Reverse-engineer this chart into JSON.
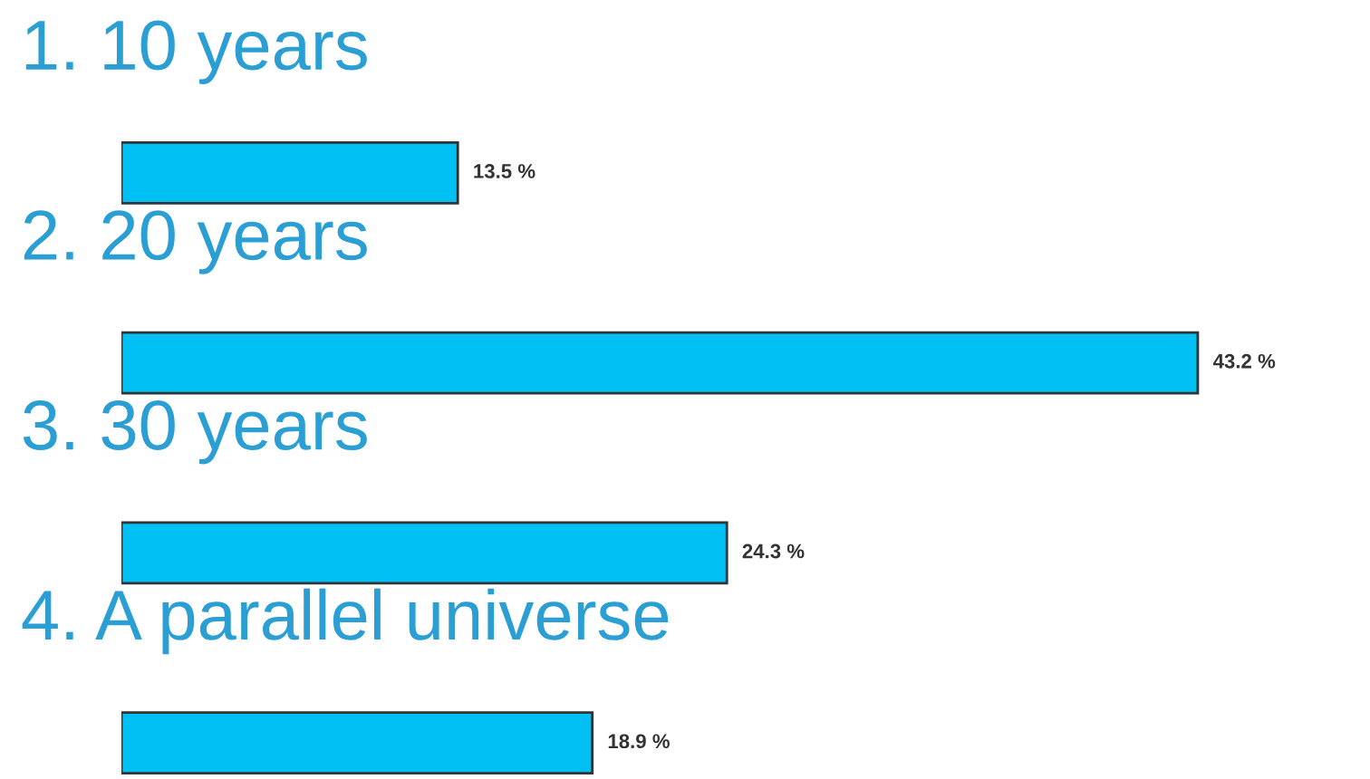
{
  "chart_data": {
    "type": "bar",
    "orientation": "horizontal",
    "categories": [
      "1. 10 years",
      "2. 20 years",
      "3. 30 years",
      "4. A parallel universe"
    ],
    "values": [
      13.5,
      43.2,
      24.3,
      18.9
    ],
    "value_labels": [
      "13.5 %",
      "43.2 %",
      "24.3 %",
      "18.9 %"
    ],
    "color": "#00bff3"
  }
}
